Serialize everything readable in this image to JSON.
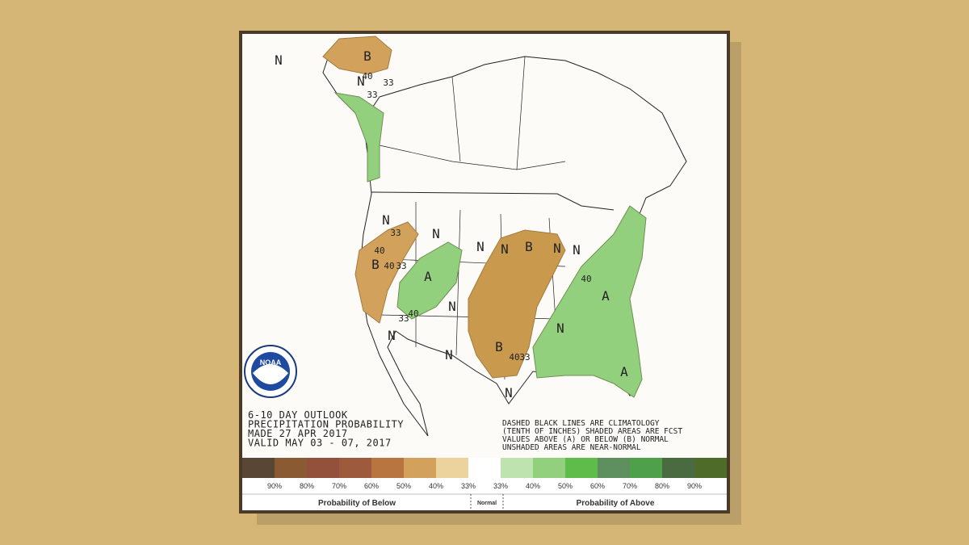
{
  "header": {
    "lines": [
      "6-10 DAY OUTLOOK",
      "PRECIPITATION PROBABILITY",
      "MADE  27 APR 2017",
      "VALID  MAY 03 - 07, 2017"
    ]
  },
  "notes": [
    "DASHED BLACK LINES ARE CLIMATOLOGY",
    "(TENTH OF INCHES) SHADED AREAS ARE FCST",
    "VALUES ABOVE (A) OR BELOW (B) NORMAL",
    "UNSHADED AREAS ARE NEAR-NORMAL"
  ],
  "logo": "NOAA",
  "map_labels": [
    "N",
    "B",
    "40",
    "N",
    "33",
    "33",
    "N",
    "33",
    "40",
    "B",
    "40",
    "33",
    "A",
    "N",
    "N",
    "N",
    "B",
    "N",
    "N",
    "40",
    "A",
    "40",
    "33",
    "N",
    "N",
    "B",
    "40",
    "33",
    "N",
    "N",
    "N",
    "A"
  ],
  "legend": {
    "colors": [
      "#5a4634",
      "#8a5a32",
      "#93503a",
      "#9e5a3c",
      "#b8753f",
      "#d2a25c",
      "#ecd29c",
      "#ffffff",
      "#bfe3ae",
      "#93d07e",
      "#5fbb4a",
      "#5e8f5e",
      "#4fa04a",
      "#4a6a40",
      "#4f6b2a"
    ],
    "labels": [
      "90%",
      "80%",
      "70%",
      "60%",
      "50%",
      "40%",
      "33%",
      "33%",
      "40%",
      "50%",
      "60%",
      "70%",
      "80%",
      "90%"
    ],
    "below": "Probability of Below",
    "normal": "Normal",
    "above": "Probability of Above"
  }
}
